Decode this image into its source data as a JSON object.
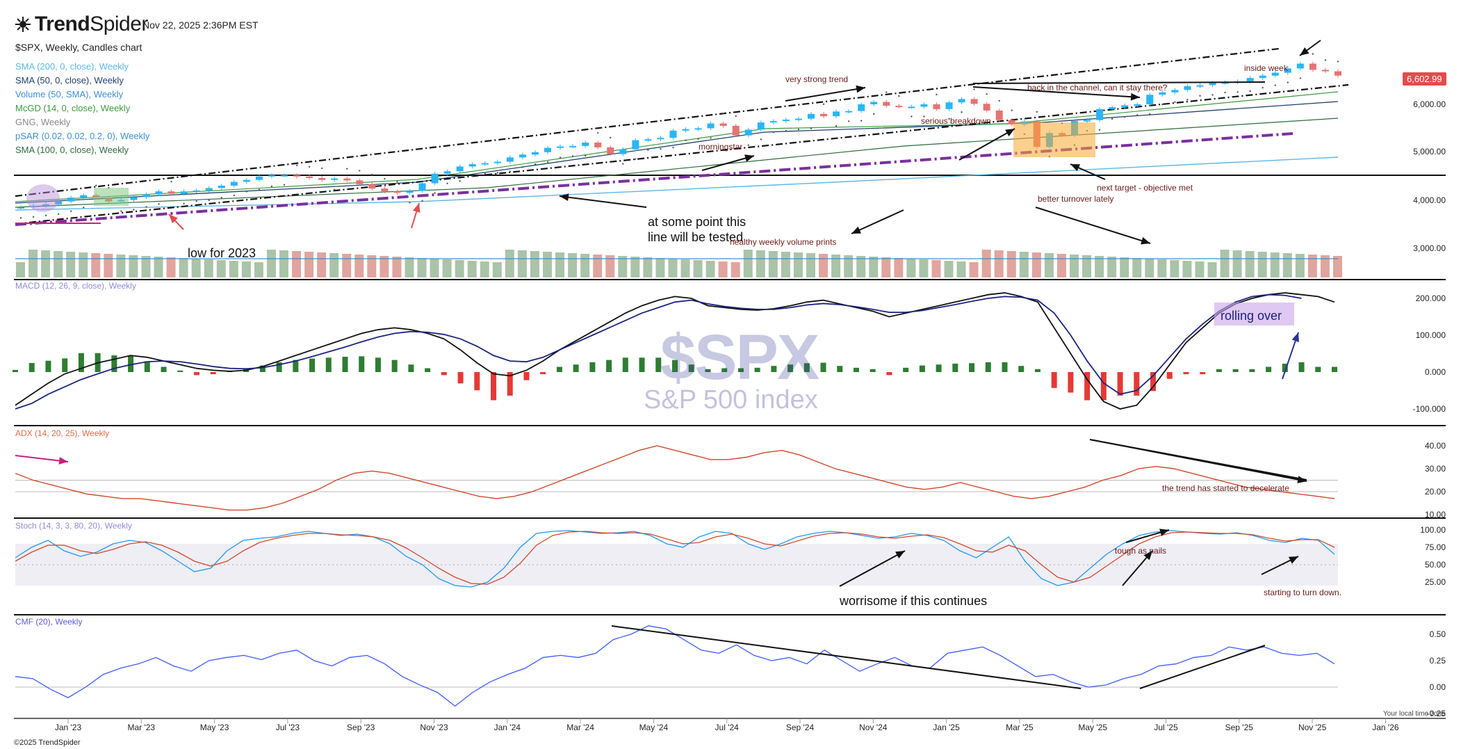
{
  "app": {
    "brand_bold": "Trend",
    "brand_light": "Spider",
    "timestamp": "Nov 22, 2025 2:36PM EST"
  },
  "header": {
    "title": "$SPX, Weekly, Candles chart"
  },
  "legend": [
    {
      "label": "SMA (200, 0, close), Weekly",
      "color": "#5ab8e6"
    },
    {
      "label": "SMA (50, 0, close), Weekly",
      "color": "#1e3f6b"
    },
    {
      "label": "Volume (50, SMA), Weekly",
      "color": "#3d8fd6"
    },
    {
      "label": "McGD (14, 0, close), Weekly",
      "color": "#3c9a3c"
    },
    {
      "label": "GNG, Weekly",
      "color": "#888888"
    },
    {
      "label": "pSAR (0.02, 0.02, 0.2, 0), Weekly",
      "color": "#3d8fd6"
    },
    {
      "label": "SMA (100, 0, close), Weekly",
      "color": "#2f6b3f"
    }
  ],
  "price_badge": "6,602.99",
  "watermark": {
    "symbol": "$SPX",
    "name": "S&P 500 index"
  },
  "footer": {
    "copyright": "©2025 TrendSpider",
    "timezone": "Your local time zone"
  },
  "colors": {
    "up": "#29b6f6",
    "down": "#e57373",
    "vol_up": "#a9c4a9",
    "vol_down": "#e0a59e",
    "purple": "#7b2fa0",
    "macd_up": "#2e7d32",
    "macd_down": "#e53935"
  },
  "chart_data": {
    "type": "candlestick",
    "x_axis": {
      "ticks": [
        "Jan '23",
        "Mar '23",
        "May '23",
        "Jul '23",
        "Sep '23",
        "Nov '23",
        "Jan '24",
        "Mar '24",
        "May '24",
        "Jul '24",
        "Sep '24",
        "Nov '24",
        "Jan '25",
        "Mar '25",
        "May '25",
        "Jul '25",
        "Sep '25",
        "Nov '25",
        "Jan '26"
      ]
    },
    "price_panel": {
      "y_ticks": [
        "6,000.00",
        "5,000.00",
        "4,000.00",
        "3,000.00"
      ],
      "close_series": [
        3850,
        3880,
        3910,
        3970,
        4050,
        4100,
        4050,
        3970,
        4000,
        4060,
        4120,
        4180,
        4130,
        4180,
        4200,
        4250,
        4300,
        4380,
        4420,
        4490,
        4520,
        4520,
        4490,
        4460,
        4420,
        4450,
        4410,
        4330,
        4240,
        4180,
        4150,
        4190,
        4350,
        4550,
        4600,
        4700,
        4750,
        4770,
        4800,
        4890,
        4950,
        5000,
        5090,
        5120,
        5130,
        5200,
        5100,
        4960,
        5060,
        5250,
        5270,
        5300,
        5450,
        5480,
        5500,
        5600,
        5550,
        5350,
        5470,
        5620,
        5650,
        5680,
        5700,
        5800,
        5750,
        5850,
        5860,
        6000,
        6050,
        5970,
        5950,
        5950,
        6000,
        5900,
        6040,
        6110,
        6010,
        5870,
        5670,
        5580,
        5640,
        5110,
        5400,
        5350,
        5650,
        5670,
        5900,
        5940,
        5980,
        6000,
        6200,
        6250,
        6300,
        6380,
        6400,
        6450,
        6460,
        6480,
        6550,
        6600,
        6660,
        6750,
        6850,
        6720,
        6690,
        6600
      ],
      "annotations": [
        "very strong trend",
        "inside week",
        "back in the channel, can it stay there?",
        "serious breakdown",
        "morningstar",
        "next target - objective met",
        "better turnover lately",
        "at some point this\nline will be tested",
        "healthy weekly volume prints",
        "low for 2023"
      ]
    },
    "macd_panel": {
      "title": "MACD (12, 26, 9, close), Weekly",
      "y_ticks": [
        "200.000",
        "100.000",
        "0.000",
        "-100.000"
      ],
      "macd": [
        -90,
        -60,
        -30,
        -5,
        10,
        25,
        35,
        45,
        40,
        30,
        20,
        10,
        5,
        2,
        5,
        15,
        30,
        45,
        60,
        75,
        90,
        105,
        115,
        120,
        115,
        105,
        90,
        60,
        25,
        -5,
        -10,
        5,
        30,
        60,
        85,
        110,
        135,
        160,
        180,
        195,
        205,
        200,
        180,
        175,
        170,
        168,
        172,
        180,
        190,
        195,
        185,
        175,
        165,
        150,
        160,
        170,
        180,
        190,
        200,
        210,
        215,
        205,
        190,
        120,
        50,
        -20,
        -80,
        -100,
        -90,
        -40,
        20,
        80,
        120,
        160,
        185,
        200,
        210,
        215,
        210,
        205,
        190
      ],
      "signal": [
        -100,
        -85,
        -60,
        -40,
        -20,
        -5,
        10,
        20,
        28,
        30,
        28,
        22,
        15,
        10,
        9,
        12,
        20,
        30,
        42,
        55,
        68,
        82,
        95,
        105,
        110,
        108,
        102,
        90,
        70,
        45,
        30,
        28,
        40,
        60,
        80,
        100,
        120,
        140,
        160,
        175,
        190,
        195,
        185,
        178,
        173,
        170,
        170,
        175,
        182,
        186,
        183,
        177,
        170,
        162,
        162,
        167,
        175,
        183,
        192,
        200,
        205,
        203,
        195,
        160,
        100,
        30,
        -30,
        -60,
        -50,
        -10,
        40,
        90,
        130,
        165,
        190,
        205,
        210,
        208,
        200
      ],
      "label": "rolling over"
    },
    "adx_panel": {
      "title": "ADX (14, 20, 25), Weekly",
      "y_ticks": [
        "40.00",
        "30.00",
        "20.00",
        "10.00"
      ],
      "adx": [
        28,
        25,
        23,
        21,
        19,
        18,
        17,
        17,
        16,
        15,
        14,
        13,
        12,
        12,
        13,
        15,
        18,
        21,
        25,
        28,
        29,
        28,
        26,
        24,
        22,
        20,
        18,
        17,
        18,
        20,
        23,
        26,
        29,
        32,
        35,
        38,
        40,
        38,
        36,
        34,
        34,
        35,
        37,
        38,
        36,
        33,
        30,
        28,
        26,
        24,
        22,
        21,
        22,
        24,
        22,
        20,
        18,
        17,
        18,
        20,
        22,
        25,
        27,
        30,
        31,
        30,
        28,
        26,
        24,
        22,
        21,
        20,
        19,
        18,
        17
      ],
      "label": "the trend has started to decelerate"
    },
    "stoch_panel": {
      "title": "Stoch (14, 3, 3, 80, 20), Weekly",
      "y_ticks": [
        "100.00",
        "75.00",
        "50.00",
        "25.00"
      ],
      "k": [
        60,
        75,
        85,
        70,
        62,
        68,
        80,
        85,
        82,
        70,
        55,
        40,
        45,
        70,
        85,
        88,
        90,
        95,
        98,
        95,
        92,
        94,
        90,
        80,
        62,
        50,
        30,
        20,
        18,
        25,
        45,
        75,
        95,
        98,
        99,
        97,
        95,
        96,
        98,
        92,
        80,
        75,
        90,
        98,
        95,
        80,
        72,
        80,
        90,
        95,
        98,
        96,
        92,
        88,
        90,
        95,
        92,
        85,
        70,
        60,
        75,
        90,
        55,
        30,
        20,
        25,
        45,
        65,
        80,
        92,
        97,
        99,
        97,
        95,
        94,
        96,
        92,
        85,
        82,
        88,
        85,
        65
      ],
      "d": [
        55,
        68,
        78,
        78,
        70,
        66,
        72,
        80,
        83,
        78,
        68,
        55,
        48,
        55,
        70,
        82,
        88,
        92,
        95,
        95,
        93,
        92,
        90,
        85,
        74,
        60,
        45,
        32,
        23,
        22,
        32,
        52,
        78,
        92,
        97,
        98,
        96,
        95,
        96,
        94,
        87,
        80,
        82,
        90,
        94,
        88,
        80,
        77,
        84,
        91,
        95,
        96,
        94,
        90,
        88,
        91,
        93,
        89,
        80,
        70,
        68,
        78,
        70,
        50,
        32,
        25,
        32,
        48,
        64,
        80,
        90,
        96,
        97,
        96,
        95,
        95,
        93,
        88,
        84,
        86,
        86,
        75
      ],
      "label": "worrisome if this continues",
      "label2": "tough as nails",
      "label3": "starting to turn down."
    },
    "cmf_panel": {
      "title": "CMF (20), Weekly",
      "y_ticks": [
        "0.50",
        "0.25",
        "0.00",
        "-0.25"
      ],
      "cmf": [
        0.1,
        0.08,
        -0.02,
        -0.1,
        0.0,
        0.12,
        0.18,
        0.22,
        0.28,
        0.2,
        0.15,
        0.25,
        0.28,
        0.3,
        0.26,
        0.32,
        0.35,
        0.25,
        0.2,
        0.28,
        0.3,
        0.22,
        0.1,
        0.02,
        -0.05,
        -0.18,
        -0.05,
        0.05,
        0.12,
        0.18,
        0.28,
        0.3,
        0.28,
        0.32,
        0.45,
        0.5,
        0.58,
        0.55,
        0.45,
        0.35,
        0.32,
        0.4,
        0.3,
        0.25,
        0.28,
        0.22,
        0.35,
        0.25,
        0.15,
        0.22,
        0.28,
        0.2,
        0.18,
        0.32,
        0.35,
        0.38,
        0.3,
        0.2,
        0.1,
        0.12,
        0.05,
        0.0,
        0.02,
        0.08,
        0.12,
        0.2,
        0.22,
        0.28,
        0.3,
        0.38,
        0.35,
        0.38,
        0.32,
        0.3,
        0.32,
        0.22
      ]
    }
  }
}
